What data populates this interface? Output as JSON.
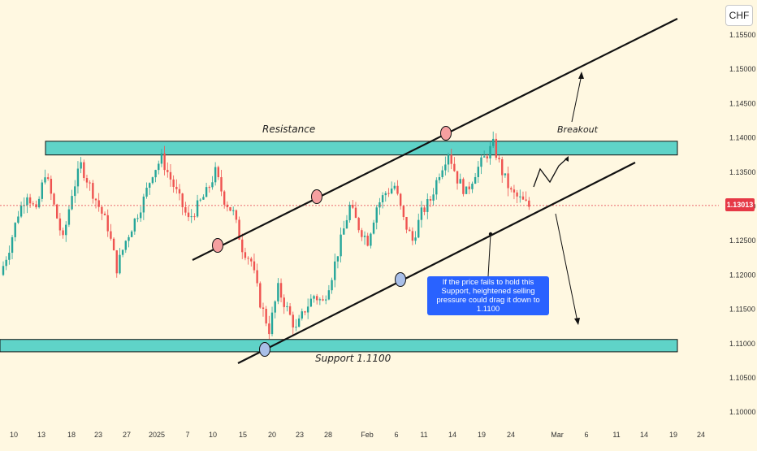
{
  "currency": "CHF",
  "current_price_label": "1.13013",
  "colors": {
    "background": "#fff8e1",
    "zone_fill": "#5fd3c8",
    "up": "#26a69a",
    "down": "#ef5350",
    "price_line": "#e63946",
    "info_box": "#2962ff",
    "touch_red": "#f5a0a0",
    "touch_blue": "#a9bfe8"
  },
  "annotations": {
    "resistance": "Resistance",
    "support": "Support 1.1100",
    "breakout": "Breakout",
    "info_text": "If the price fails to hold this Support, heightened selling pressure could drag it down to 1.1100"
  },
  "chart_data": {
    "type": "candlestick",
    "symbol_quote": "CHF",
    "y_axis_ticks": [
      "1.15500",
      "1.15000",
      "1.14500",
      "1.14000",
      "1.13500",
      "1.13000",
      "1.12500",
      "1.12000",
      "1.11500",
      "1.11000",
      "1.10500",
      "1.10000"
    ],
    "x_axis_ticks": [
      "10",
      "13",
      "18",
      "23",
      "27",
      "2025",
      "7",
      "10",
      "15",
      "20",
      "23",
      "28",
      "Feb",
      "6",
      "11",
      "14",
      "19",
      "24",
      "Mar",
      "6",
      "11",
      "14",
      "19",
      "24"
    ],
    "ylim": [
      1.0985,
      1.1575
    ],
    "last_price": 1.13013,
    "resistance_zone": [
      1.1375,
      1.1395
    ],
    "support_zone": [
      1.1088,
      1.1106
    ],
    "ascending_channel": {
      "upper": [
        {
          "date": "10",
          "price": 1.1231
        },
        {
          "date": "19",
          "price": 1.1566
        }
      ],
      "lower": [
        {
          "date": "15",
          "price": 1.1068
        },
        {
          "date": "14",
          "price": 1.1352
        }
      ]
    },
    "touch_points": [
      {
        "price": 1.1237,
        "color": "red"
      },
      {
        "price": 1.1308,
        "color": "red"
      },
      {
        "price": 1.1402,
        "color": "red"
      },
      {
        "price": 1.1088,
        "color": "blue"
      },
      {
        "price": 1.1191,
        "color": "blue"
      }
    ],
    "projections": [
      {
        "label": "Breakout",
        "target": 1.1492
      },
      {
        "label": "Support",
        "target": 1.111
      }
    ],
    "candles_close_path": [
      1.12,
      1.124,
      1.129,
      1.132,
      1.129,
      1.135,
      1.13,
      1.125,
      1.132,
      1.136,
      1.133,
      1.13,
      1.127,
      1.121,
      1.125,
      1.128,
      1.131,
      1.135,
      1.137,
      1.134,
      1.131,
      1.128,
      1.13,
      1.132,
      1.135,
      1.131,
      1.129,
      1.124,
      1.122,
      1.116,
      1.112,
      1.118,
      1.115,
      1.112,
      1.115,
      1.117,
      1.116,
      1.12,
      1.125,
      1.13,
      1.127,
      1.125,
      1.13,
      1.132,
      1.133,
      1.128,
      1.125,
      1.129,
      1.131,
      1.135,
      1.138,
      1.134,
      1.132,
      1.135,
      1.137,
      1.139,
      1.135,
      1.132,
      1.131,
      1.13
    ]
  }
}
